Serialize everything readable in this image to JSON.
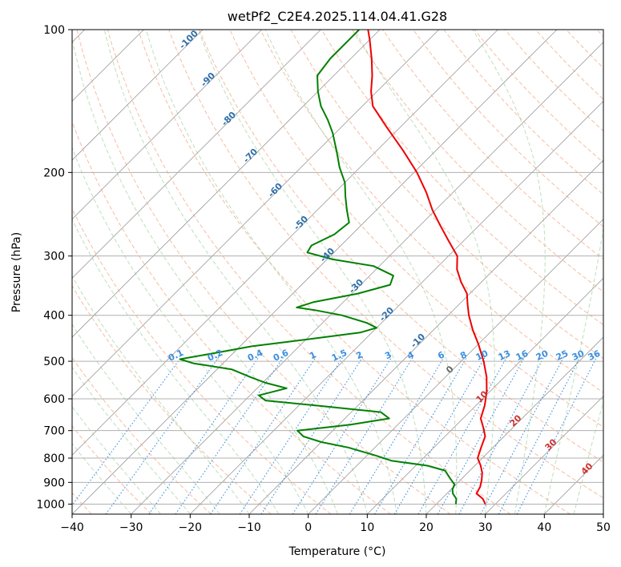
{
  "chart_data": {
    "type": "line",
    "title": "wetPf2_C2E4.2025.114.04.41.G28",
    "xlabel": "Temperature (°C)",
    "ylabel": "Pressure (hPa)",
    "xlim": [
      -40,
      50
    ],
    "ylim": [
      1050,
      100
    ],
    "y_scale": "log",
    "skew": true,
    "x_ticks": [
      -40,
      -30,
      -20,
      -10,
      0,
      10,
      20,
      30,
      40,
      50
    ],
    "y_ticks": [
      1000,
      900,
      800,
      700,
      600,
      500,
      400,
      300,
      200,
      100
    ],
    "grid": "horizontal isobars",
    "background_lines": {
      "isotherms": {
        "color": "#999999",
        "style": "solid"
      },
      "dry_adiabats": {
        "color": "#f4a582",
        "style": "dashed",
        "labels": [
          "10",
          "20",
          "30",
          "40"
        ]
      },
      "moist_adiabats": {
        "color": "#8fc98f",
        "style": "dashed"
      },
      "mixing_ratio": {
        "color": "#3a8fe0",
        "style": "dotted",
        "labels": [
          "0.1",
          "0.2",
          "0.4",
          "0.6",
          "1",
          "1.5",
          "2",
          "3",
          "4",
          "6",
          "8",
          "10",
          "13",
          "16",
          "20",
          "25",
          "30",
          "36"
        ]
      },
      "isotherm_labels": {
        "color": "#2f6fa8",
        "labels": [
          "-100",
          "-90",
          "-80",
          "-70",
          "-60",
          "-50",
          "-40",
          "-30",
          "-20",
          "-10",
          "0"
        ]
      }
    },
    "series": [
      {
        "color": "#ee0000",
        "points": [
          {
            "p": 1000,
            "t": 28.3
          },
          {
            "p": 975,
            "t": 27.0
          },
          {
            "p": 950,
            "t": 25.0
          },
          {
            "p": 920,
            "t": 24.5
          },
          {
            "p": 890,
            "t": 23.6
          },
          {
            "p": 860,
            "t": 22.5
          },
          {
            "p": 830,
            "t": 21.0
          },
          {
            "p": 800,
            "t": 19.2
          },
          {
            "p": 760,
            "t": 18.0
          },
          {
            "p": 720,
            "t": 16.8
          },
          {
            "p": 690,
            "t": 15.0
          },
          {
            "p": 660,
            "t": 13.0
          },
          {
            "p": 620,
            "t": 11.5
          },
          {
            "p": 580,
            "t": 9.5
          },
          {
            "p": 540,
            "t": 7.0
          },
          {
            "p": 500,
            "t": 3.8
          },
          {
            "p": 460,
            "t": 0.0
          },
          {
            "p": 430,
            "t": -3.3
          },
          {
            "p": 400,
            "t": -6.5
          },
          {
            "p": 380,
            "t": -8.5
          },
          {
            "p": 360,
            "t": -10.5
          },
          {
            "p": 340,
            "t": -13.5
          },
          {
            "p": 320,
            "t": -16.3
          },
          {
            "p": 300,
            "t": -18.5
          },
          {
            "p": 280,
            "t": -22.3
          },
          {
            "p": 260,
            "t": -26.3
          },
          {
            "p": 240,
            "t": -30.5
          },
          {
            "p": 220,
            "t": -34.6
          },
          {
            "p": 200,
            "t": -39.5
          },
          {
            "p": 180,
            "t": -45.5
          },
          {
            "p": 160,
            "t": -52.5
          },
          {
            "p": 145,
            "t": -58.2
          },
          {
            "p": 135,
            "t": -61.0
          },
          {
            "p": 125,
            "t": -63.5
          },
          {
            "p": 115,
            "t": -66.5
          },
          {
            "p": 105,
            "t": -70.0
          },
          {
            "p": 100,
            "t": -72.0
          }
        ]
      },
      {
        "color": "#008000",
        "points": [
          {
            "p": 1000,
            "t": 23.3
          },
          {
            "p": 975,
            "t": 22.5
          },
          {
            "p": 950,
            "t": 21.0
          },
          {
            "p": 930,
            "t": 20.2
          },
          {
            "p": 910,
            "t": 19.8
          },
          {
            "p": 880,
            "t": 17.8
          },
          {
            "p": 850,
            "t": 15.8
          },
          {
            "p": 830,
            "t": 12.0
          },
          {
            "p": 810,
            "t": 5.0
          },
          {
            "p": 790,
            "t": 1.5
          },
          {
            "p": 760,
            "t": -4.5
          },
          {
            "p": 740,
            "t": -10.0
          },
          {
            "p": 720,
            "t": -14.0
          },
          {
            "p": 700,
            "t": -16.0
          },
          {
            "p": 680,
            "t": -8.0
          },
          {
            "p": 660,
            "t": -2.5
          },
          {
            "p": 640,
            "t": -5.0
          },
          {
            "p": 620,
            "t": -17.0
          },
          {
            "p": 605,
            "t": -26.5
          },
          {
            "p": 590,
            "t": -28.5
          },
          {
            "p": 570,
            "t": -25.0
          },
          {
            "p": 555,
            "t": -29.5
          },
          {
            "p": 540,
            "t": -33.0
          },
          {
            "p": 520,
            "t": -37.5
          },
          {
            "p": 505,
            "t": -45.0
          },
          {
            "p": 495,
            "t": -48.0
          },
          {
            "p": 480,
            "t": -43.0
          },
          {
            "p": 465,
            "t": -38.0
          },
          {
            "p": 450,
            "t": -30.0
          },
          {
            "p": 435,
            "t": -22.0
          },
          {
            "p": 425,
            "t": -20.0
          },
          {
            "p": 415,
            "t": -22.5
          },
          {
            "p": 400,
            "t": -28.0
          },
          {
            "p": 390,
            "t": -33.5
          },
          {
            "p": 385,
            "t": -37.0
          },
          {
            "p": 375,
            "t": -35.0
          },
          {
            "p": 360,
            "t": -29.0
          },
          {
            "p": 345,
            "t": -25.0
          },
          {
            "p": 330,
            "t": -26.0
          },
          {
            "p": 315,
            "t": -31.0
          },
          {
            "p": 305,
            "t": -39.0
          },
          {
            "p": 295,
            "t": -44.5
          },
          {
            "p": 285,
            "t": -45.0
          },
          {
            "p": 270,
            "t": -43.0
          },
          {
            "p": 255,
            "t": -42.5
          },
          {
            "p": 240,
            "t": -45.0
          },
          {
            "p": 225,
            "t": -47.5
          },
          {
            "p": 210,
            "t": -50.0
          },
          {
            "p": 195,
            "t": -53.5
          },
          {
            "p": 180,
            "t": -56.8
          },
          {
            "p": 165,
            "t": -60.5
          },
          {
            "p": 155,
            "t": -63.5
          },
          {
            "p": 145,
            "t": -67.0
          },
          {
            "p": 135,
            "t": -70.0
          },
          {
            "p": 125,
            "t": -72.8
          },
          {
            "p": 115,
            "t": -73.5
          },
          {
            "p": 105,
            "t": -73.5
          },
          {
            "p": 100,
            "t": -73.5
          }
        ]
      }
    ]
  }
}
